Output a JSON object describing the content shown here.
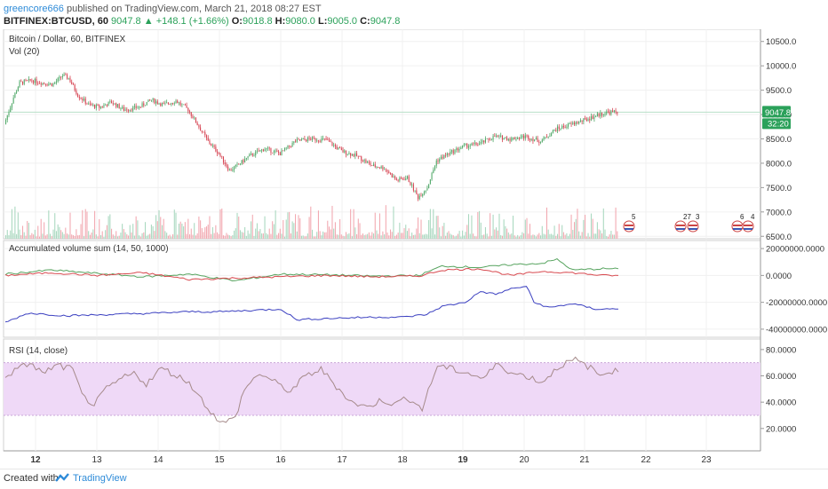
{
  "header": {
    "author": "greencore666",
    "published_text": "published on TradingView.com, March 21, 2018 08:27 EST",
    "symbol": "BITFINEX:BTCUSD, 60",
    "last": "9047.8",
    "up_arrow": "▲",
    "change": "+148.1 (+1.66%)",
    "o_label": "O:",
    "o": "9018.8",
    "h_label": "H:",
    "h": "9080.0",
    "l_label": "L:",
    "l": "9005.0",
    "c_label": "C:",
    "c": "9047.8"
  },
  "footer": {
    "created_with": "Created with",
    "brand": "TradingView"
  },
  "colors": {
    "up": "#52a96a",
    "down": "#d64553",
    "vol_up": "#a9d8bf",
    "vol_down": "#f2a8b0",
    "rsi_band": "#efd9f7",
    "rsi_line": "#a58a8a",
    "acc_green": "#56a35e",
    "acc_red": "#d8494f",
    "acc_blue": "#3a3fc0",
    "price_badge": "#2ba15a"
  },
  "chart_data": [
    {
      "type": "candlestick",
      "title": "Bitcoin / Dollar, 60, BITFINEX",
      "subtitle": "Vol (20)",
      "x_ticks": [
        "12",
        "13",
        "14",
        "15",
        "16",
        "17",
        "18",
        "19",
        "20",
        "21",
        "22",
        "23"
      ],
      "y_ticks": [
        "10500.0",
        "10000.0",
        "9500.0",
        "9000.0",
        "8500.0",
        "8000.0",
        "7500.0",
        "7000.0",
        "6500.0"
      ],
      "ylim": [
        6450,
        10750
      ],
      "last_price": "9047.8",
      "countdown": "32:20",
      "event_labels": [
        "5",
        "27",
        "3",
        "6",
        "4"
      ],
      "close_path": [
        [
          0,
          8800
        ],
        [
          6,
          9350
        ],
        [
          10,
          9650
        ],
        [
          18,
          9700
        ],
        [
          25,
          9650
        ],
        [
          32,
          9620
        ],
        [
          38,
          9800
        ],
        [
          42,
          9750
        ],
        [
          48,
          9400
        ],
        [
          55,
          9200
        ],
        [
          62,
          9150
        ],
        [
          70,
          9250
        ],
        [
          78,
          9100
        ],
        [
          88,
          9150
        ],
        [
          96,
          9300
        ],
        [
          104,
          9200
        ],
        [
          112,
          9280
        ],
        [
          120,
          9100
        ],
        [
          126,
          8800
        ],
        [
          133,
          8450
        ],
        [
          140,
          8200
        ],
        [
          147,
          7850
        ],
        [
          152,
          7950
        ],
        [
          160,
          8150
        ],
        [
          170,
          8300
        ],
        [
          180,
          8200
        ],
        [
          190,
          8450
        ],
        [
          200,
          8500
        ],
        [
          210,
          8480
        ],
        [
          220,
          8250
        ],
        [
          230,
          8150
        ],
        [
          240,
          7950
        ],
        [
          248,
          7900
        ],
        [
          256,
          7650
        ],
        [
          263,
          7700
        ],
        [
          270,
          7300
        ],
        [
          276,
          7500
        ],
        [
          282,
          8050
        ],
        [
          290,
          8200
        ],
        [
          300,
          8350
        ],
        [
          310,
          8400
        ],
        [
          320,
          8550
        ],
        [
          330,
          8500
        ],
        [
          340,
          8550
        ],
        [
          350,
          8450
        ],
        [
          360,
          8700
        ],
        [
          370,
          8800
        ],
        [
          380,
          8900
        ],
        [
          388,
          9000
        ],
        [
          394,
          9050
        ],
        [
          400,
          9047
        ]
      ]
    },
    {
      "type": "line",
      "title": "Accumulated volume sum (14, 50, 1000)",
      "y_ticks": [
        "20000000.0000",
        "0.0000",
        "-20000000.0000",
        "-40000000.0000"
      ],
      "ylim": [
        -46000000,
        26000000
      ],
      "series": [
        {
          "values": [
            [
              0,
              1000000
            ],
            [
              30,
              4000000
            ],
            [
              60,
              1500000
            ],
            [
              90,
              -1000000
            ],
            [
              120,
              1000000
            ],
            [
              150,
              -4000000
            ],
            [
              180,
              1000000
            ],
            [
              210,
              500000
            ],
            [
              240,
              -500000
            ],
            [
              270,
              0
            ],
            [
              285,
              7000000
            ],
            [
              310,
              6000000
            ],
            [
              330,
              8000000
            ],
            [
              350,
              9000000
            ],
            [
              360,
              12000000
            ],
            [
              370,
              4000000
            ],
            [
              390,
              5000000
            ],
            [
              400,
              5000000
            ]
          ]
        },
        {
          "values": [
            [
              0,
              0
            ],
            [
              30,
              2000000
            ],
            [
              60,
              0
            ],
            [
              90,
              2000000
            ],
            [
              120,
              -3000000
            ],
            [
              150,
              -2000000
            ],
            [
              180,
              -1000000
            ],
            [
              210,
              0
            ],
            [
              240,
              -1000000
            ],
            [
              270,
              -500000
            ],
            [
              285,
              4000000
            ],
            [
              310,
              5000000
            ],
            [
              330,
              0
            ],
            [
              350,
              3000000
            ],
            [
              370,
              2000000
            ],
            [
              390,
              0
            ],
            [
              400,
              0
            ]
          ]
        },
        {
          "values": [
            [
              0,
              -35000000
            ],
            [
              15,
              -28000000
            ],
            [
              40,
              -30000000
            ],
            [
              70,
              -29000000
            ],
            [
              100,
              -28000000
            ],
            [
              120,
              -27000000
            ],
            [
              140,
              -27000000
            ],
            [
              160,
              -26000000
            ],
            [
              180,
              -25000000
            ],
            [
              190,
              -33000000
            ],
            [
              210,
              -32000000
            ],
            [
              240,
              -31000000
            ],
            [
              260,
              -31000000
            ],
            [
              275,
              -29000000
            ],
            [
              285,
              -23000000
            ],
            [
              300,
              -20000000
            ],
            [
              310,
              -12000000
            ],
            [
              320,
              -14000000
            ],
            [
              330,
              -10000000
            ],
            [
              340,
              -8000000
            ],
            [
              345,
              -20000000
            ],
            [
              355,
              -24000000
            ],
            [
              370,
              -21000000
            ],
            [
              385,
              -25000000
            ],
            [
              400,
              -25000000
            ]
          ]
        }
      ]
    },
    {
      "type": "line",
      "title": "RSI (14, close)",
      "y_ticks": [
        "80.0000",
        "60.0000",
        "40.0000",
        "20.0000"
      ],
      "ylim": [
        3,
        88
      ],
      "band": [
        30,
        70
      ],
      "series": [
        {
          "values": [
            [
              0,
              60
            ],
            [
              8,
              65
            ],
            [
              16,
              70
            ],
            [
              24,
              62
            ],
            [
              34,
              68
            ],
            [
              44,
              65
            ],
            [
              50,
              45
            ],
            [
              58,
              38
            ],
            [
              66,
              50
            ],
            [
              76,
              58
            ],
            [
              84,
              62
            ],
            [
              92,
              54
            ],
            [
              102,
              66
            ],
            [
              112,
              60
            ],
            [
              120,
              55
            ],
            [
              128,
              42
            ],
            [
              136,
              30
            ],
            [
              142,
              24
            ],
            [
              150,
              28
            ],
            [
              156,
              50
            ],
            [
              166,
              62
            ],
            [
              176,
              55
            ],
            [
              186,
              48
            ],
            [
              196,
              60
            ],
            [
              206,
              65
            ],
            [
              216,
              52
            ],
            [
              226,
              40
            ],
            [
              236,
              36
            ],
            [
              246,
              42
            ],
            [
              254,
              38
            ],
            [
              262,
              44
            ],
            [
              272,
              35
            ],
            [
              282,
              68
            ],
            [
              292,
              65
            ],
            [
              302,
              62
            ],
            [
              312,
              58
            ],
            [
              322,
              70
            ],
            [
              330,
              62
            ],
            [
              340,
              60
            ],
            [
              350,
              55
            ],
            [
              362,
              68
            ],
            [
              372,
              72
            ],
            [
              382,
              66
            ],
            [
              388,
              60
            ],
            [
              394,
              64
            ],
            [
              400,
              63
            ]
          ]
        }
      ]
    }
  ]
}
